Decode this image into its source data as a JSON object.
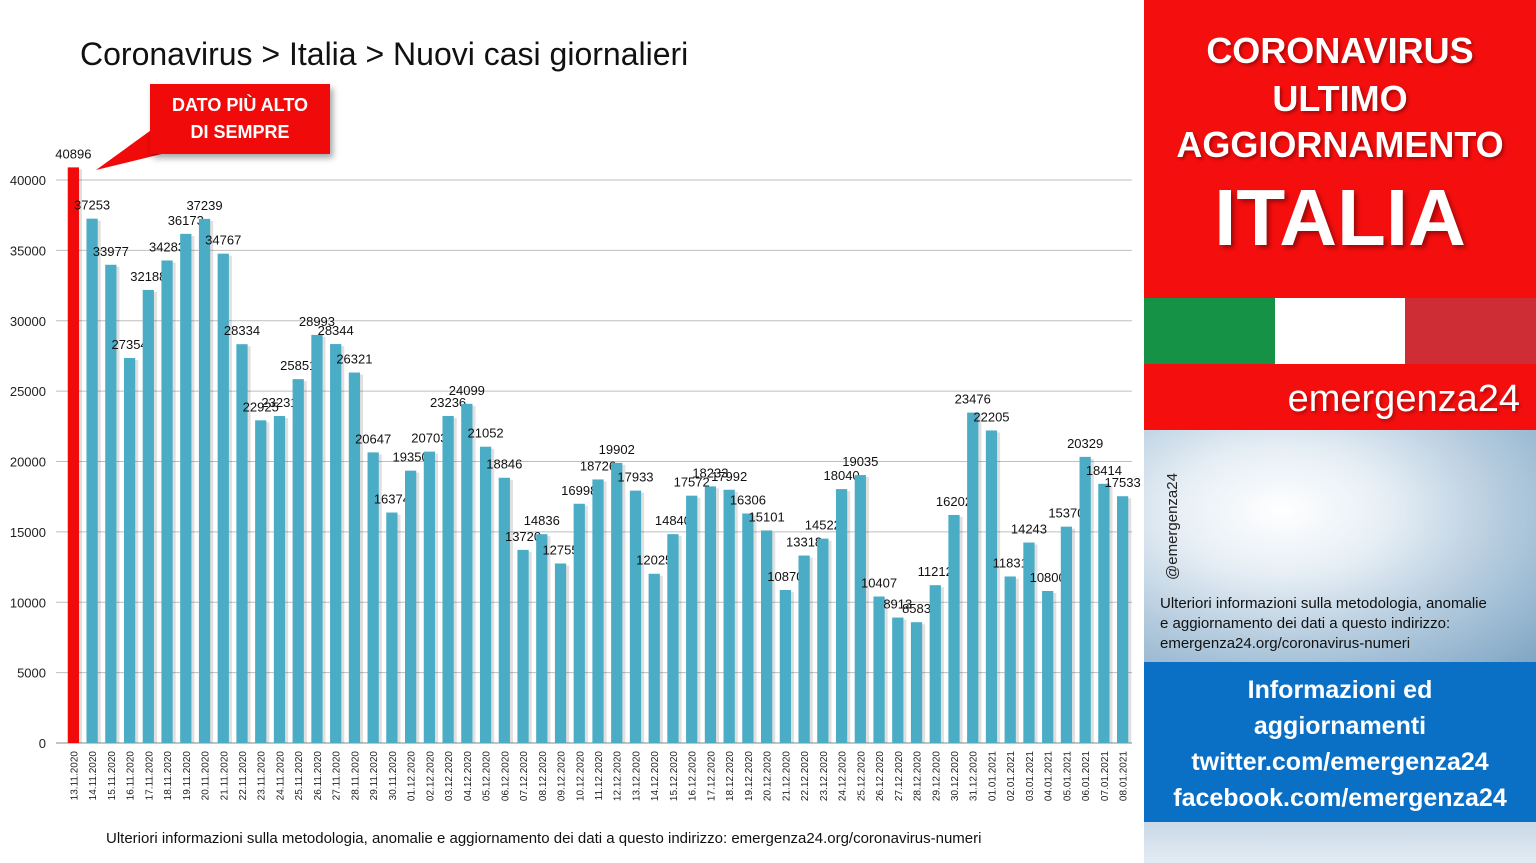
{
  "title": "Coronavirus > Italia > Nuovi casi giornalieri",
  "callout": {
    "line1": "DATO PIÙ ALTO",
    "line2": "DI SEMPRE"
  },
  "footnote": "Ulteriori informazioni sulla metodologia, anomalie e aggiornamento dei dati a questo indirizzo: emergenza24.org/coronavirus-numeri",
  "panel": {
    "line1": "CORONAVIRUS",
    "line2": "ULTIMO",
    "line3": "AGGIORNAMENTO",
    "country": "ITALIA",
    "brand": "emergenza24",
    "handle": "@emergenza24",
    "info_lines": [
      "Ulteriori informazioni sulla metodologia, anomalie",
      "e aggiornamento dei dati a questo indirizzo:",
      "emergenza24.org/coronavirus-numeri"
    ],
    "social_lines": [
      "Informazioni ed",
      "aggiornamenti",
      "twitter.com/emergenza24",
      "facebook.com/emergenza24"
    ],
    "flag_colors": [
      "#159245",
      "#ffffff",
      "#cf2d36"
    ]
  },
  "colors": {
    "bar": "#4bacc6",
    "highlight": "#f00a0a",
    "grid": "#bfbfbf"
  },
  "chart_data": {
    "type": "bar",
    "ylim": [
      0,
      40000
    ],
    "yticks": [
      "0",
      "5000",
      "10000",
      "15000",
      "20000",
      "25000",
      "30000",
      "35000",
      "40000"
    ],
    "grid": true,
    "highlight_index": 0,
    "categories": [
      "13.11.2020",
      "14.11.2020",
      "15.11.2020",
      "16.11.2020",
      "17.11.2020",
      "18.11.2020",
      "19.11.2020",
      "20.11.2020",
      "21.11.2020",
      "22.11.2020",
      "23.11.2020",
      "24.11.2020",
      "25.11.2020",
      "26.11.2020",
      "27.11.2020",
      "28.11.2020",
      "29.11.2020",
      "30.11.2020",
      "01.12.2020",
      "02.12.2020",
      "03.12.2020",
      "04.12.2020",
      "05.12.2020",
      "06.12.2020",
      "07.12.2020",
      "08.12.2020",
      "09.12.2020",
      "10.12.2020",
      "11.12.2020",
      "12.12.2020",
      "13.12.2020",
      "14.12.2020",
      "15.12.2020",
      "16.12.2020",
      "17.12.2020",
      "18.12.2020",
      "19.12.2020",
      "20.12.2020",
      "21.12.2020",
      "22.12.2020",
      "23.12.2020",
      "24.12.2020",
      "25.12.2020",
      "26.12.2020",
      "27.12.2020",
      "28.12.2020",
      "29.12.2020",
      "30.12.2020",
      "31.12.2020",
      "01.01.2021",
      "02.01.2021",
      "03.01.2021",
      "04.01.2021",
      "05.01.2021",
      "06.01.2021",
      "07.01.2021",
      "08.01.2021"
    ],
    "values": [
      40896,
      37253,
      33977,
      27354,
      32188,
      34283,
      36173,
      37239,
      34767,
      28334,
      22925,
      23231,
      25851,
      28993,
      28344,
      26321,
      20647,
      16374,
      19350,
      20703,
      23236,
      24099,
      21052,
      18846,
      13720,
      14836,
      12755,
      16998,
      18726,
      19902,
      17933,
      12025,
      14840,
      17572,
      18233,
      17992,
      16306,
      15101,
      10870,
      13318,
      14522,
      18040,
      19035,
      10407,
      8913,
      8583,
      11212,
      16202,
      23476,
      22205,
      11831,
      14243,
      10800,
      15370,
      20329,
      18414,
      17533
    ]
  }
}
